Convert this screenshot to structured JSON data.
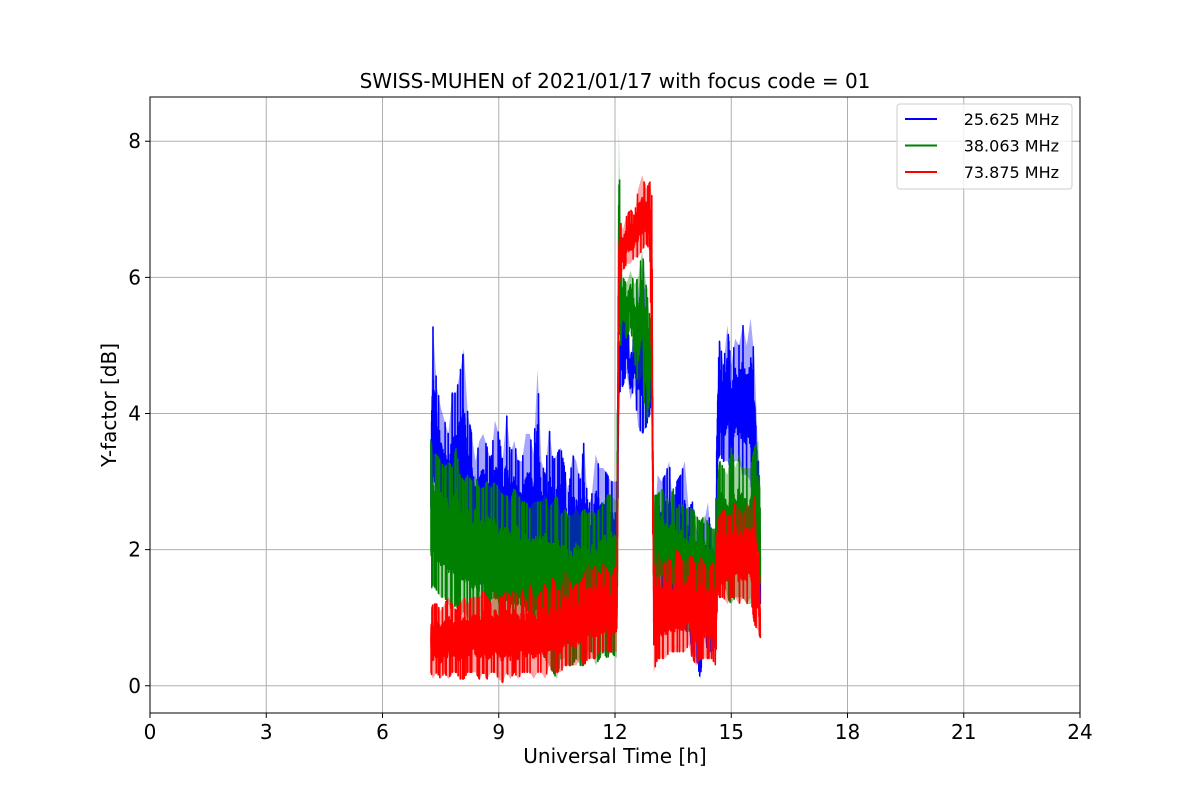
{
  "chart_data": {
    "type": "line",
    "title": "SWISS-MUHEN of 2021/01/17 with focus code = 01",
    "xlabel": "Universal Time [h]",
    "ylabel": "Y-factor [dB]",
    "xlim": [
      0,
      24
    ],
    "ylim": [
      -0.4,
      8.65
    ],
    "xticks": [
      0,
      3,
      6,
      9,
      12,
      15,
      18,
      21,
      24
    ],
    "yticks": [
      0,
      2,
      4,
      6,
      8
    ],
    "grid": true,
    "legend_position": "top-right",
    "series": [
      {
        "name": "25.625 MHz",
        "color": "#0000ff",
        "x": [
          7.25,
          7.3,
          7.4,
          7.5,
          7.6,
          7.7,
          7.8,
          7.9,
          8.0,
          8.1,
          8.2,
          8.3,
          8.4,
          8.5,
          8.6,
          8.7,
          8.8,
          8.9,
          9.0,
          9.1,
          9.2,
          9.3,
          9.4,
          9.5,
          9.6,
          9.7,
          9.8,
          9.9,
          10.0,
          10.1,
          10.2,
          10.3,
          10.4,
          10.5,
          10.6,
          10.7,
          10.8,
          10.9,
          11.0,
          11.1,
          11.2,
          11.3,
          11.4,
          11.5,
          11.6,
          11.7,
          11.8,
          11.9,
          12.05,
          12.1,
          12.15,
          12.2,
          12.3,
          12.4,
          12.5,
          12.6,
          12.7,
          12.8,
          12.9,
          12.95,
          13.0,
          13.05,
          13.1,
          13.2,
          13.3,
          13.4,
          13.5,
          13.6,
          13.7,
          13.8,
          13.9,
          14.0,
          14.1,
          14.2,
          14.3,
          14.4,
          14.5,
          14.6,
          14.65,
          14.7,
          14.8,
          14.9,
          15.0,
          15.1,
          15.2,
          15.3,
          15.4,
          15.5,
          15.6,
          15.7,
          15.75
        ],
        "upper": [
          4.0,
          5.3,
          4.4,
          4.1,
          3.9,
          3.7,
          4.3,
          4.3,
          4.6,
          4.95,
          4.0,
          3.7,
          3.3,
          3.6,
          3.7,
          3.5,
          3.3,
          3.9,
          3.7,
          3.3,
          4.0,
          3.4,
          3.6,
          3.3,
          3.3,
          3.7,
          3.7,
          3.4,
          4.65,
          3.3,
          3.1,
          3.8,
          3.3,
          3.4,
          3.5,
          3.2,
          2.8,
          3.4,
          3.3,
          3.0,
          3.6,
          2.6,
          2.8,
          3.4,
          3.2,
          3.2,
          3.1,
          3.0,
          3.0,
          5.0,
          5.4,
          5.8,
          5.5,
          4.8,
          5.2,
          5.8,
          6.2,
          5.4,
          4.7,
          4.5,
          2.5,
          2.6,
          3.1,
          3.0,
          3.1,
          3.3,
          2.6,
          3.0,
          3.1,
          3.3,
          2.6,
          2.7,
          2.3,
          2.2,
          2.4,
          2.7,
          2.0,
          2.4,
          4.5,
          5.1,
          4.7,
          5.3,
          4.7,
          5.1,
          5.0,
          5.3,
          5.0,
          5.4,
          4.8,
          3.3,
          2.6
        ],
        "lower": [
          2.2,
          2.3,
          2.4,
          2.2,
          1.9,
          1.8,
          1.7,
          1.8,
          1.7,
          1.6,
          1.6,
          1.6,
          1.7,
          1.5,
          1.5,
          1.5,
          1.5,
          1.4,
          1.4,
          1.4,
          1.4,
          1.4,
          1.4,
          1.3,
          1.3,
          1.3,
          1.3,
          1.3,
          1.3,
          1.2,
          1.2,
          1.2,
          1.2,
          1.2,
          1.2,
          1.2,
          1.2,
          1.1,
          1.1,
          1.1,
          1.1,
          1.1,
          1.1,
          1.1,
          1.1,
          1.1,
          1.0,
          1.0,
          1.0,
          4.2,
          4.4,
          4.4,
          4.6,
          4.2,
          4.4,
          3.8,
          3.7,
          3.8,
          4.0,
          4.4,
          1.3,
          1.2,
          1.1,
          1.3,
          1.2,
          1.2,
          1.3,
          1.1,
          1.0,
          0.8,
          0.8,
          0.5,
          0.4,
          0.1,
          0.7,
          0.5,
          0.5,
          0.6,
          3.3,
          3.4,
          3.3,
          3.3,
          3.2,
          3.3,
          3.3,
          3.1,
          3.1,
          3.0,
          2.6,
          1.5,
          1.2
        ]
      },
      {
        "name": "38.063 MHz",
        "color": "#008000",
        "x": [
          7.25,
          7.3,
          7.4,
          7.5,
          7.6,
          7.7,
          7.8,
          7.9,
          8.0,
          8.1,
          8.2,
          8.3,
          8.4,
          8.5,
          8.6,
          8.7,
          8.8,
          8.9,
          9.0,
          9.1,
          9.2,
          9.3,
          9.4,
          9.5,
          9.6,
          9.7,
          9.8,
          9.9,
          10.0,
          10.1,
          10.2,
          10.3,
          10.4,
          10.5,
          10.6,
          10.7,
          10.8,
          10.9,
          11.0,
          11.1,
          11.2,
          11.3,
          11.4,
          11.5,
          11.6,
          11.7,
          11.8,
          11.9,
          12.05,
          12.1,
          12.15,
          12.2,
          12.3,
          12.4,
          12.5,
          12.6,
          12.7,
          12.8,
          12.9,
          12.95,
          13.0,
          13.05,
          13.1,
          13.2,
          13.3,
          13.4,
          13.5,
          13.6,
          13.7,
          13.8,
          13.9,
          14.0,
          14.1,
          14.2,
          14.3,
          14.4,
          14.5,
          14.6,
          14.65,
          14.7,
          14.8,
          14.9,
          15.0,
          15.1,
          15.2,
          15.3,
          15.4,
          15.5,
          15.6,
          15.7,
          15.75
        ],
        "upper": [
          3.6,
          3.4,
          3.4,
          3.3,
          3.2,
          3.3,
          3.2,
          3.5,
          3.1,
          3.0,
          3.1,
          3.0,
          3.1,
          2.9,
          2.9,
          3.0,
          2.9,
          3.0,
          2.9,
          2.8,
          2.8,
          2.7,
          2.9,
          2.8,
          2.7,
          2.7,
          2.6,
          2.7,
          2.7,
          2.7,
          2.8,
          2.6,
          2.7,
          2.8,
          2.5,
          2.6,
          2.5,
          2.5,
          2.6,
          2.5,
          2.6,
          2.5,
          2.6,
          2.5,
          2.6,
          2.7,
          2.8,
          2.8,
          2.7,
          8.25,
          6.2,
          6.0,
          5.9,
          6.1,
          5.9,
          6.0,
          6.4,
          5.9,
          5.4,
          5.0,
          2.8,
          2.8,
          2.8,
          2.9,
          2.8,
          2.7,
          2.9,
          2.6,
          2.7,
          2.6,
          2.6,
          2.6,
          2.5,
          2.4,
          2.5,
          2.4,
          2.3,
          2.3,
          3.0,
          3.3,
          3.2,
          3.1,
          3.5,
          3.2,
          3.4,
          3.2,
          3.2,
          3.2,
          3.5,
          3.6,
          2.5
        ],
        "lower": [
          1.4,
          1.5,
          1.4,
          1.3,
          1.3,
          1.2,
          1.1,
          1.2,
          1.0,
          1.1,
          1.0,
          0.9,
          1.0,
          0.9,
          0.8,
          0.8,
          0.8,
          0.8,
          0.7,
          0.7,
          0.8,
          0.7,
          0.7,
          0.7,
          0.6,
          0.6,
          0.5,
          0.5,
          0.5,
          0.5,
          0.4,
          0.3,
          0.2,
          0.1,
          0.4,
          0.4,
          0.3,
          0.3,
          0.4,
          0.3,
          0.3,
          0.5,
          0.5,
          0.3,
          0.4,
          0.5,
          0.4,
          0.5,
          0.4,
          5.3,
          5.0,
          5.2,
          5.1,
          5.3,
          4.8,
          4.4,
          4.6,
          3.8,
          4.2,
          4.4,
          1.3,
          1.1,
          1.0,
          1.2,
          1.1,
          1.0,
          1.0,
          0.9,
          0.9,
          0.8,
          0.8,
          0.8,
          0.9,
          0.8,
          0.9,
          0.7,
          0.9,
          0.9,
          1.7,
          1.5,
          1.5,
          1.3,
          1.2,
          1.3,
          1.3,
          1.3,
          1.2,
          1.2,
          1.3,
          1.5,
          1.5
        ]
      },
      {
        "name": "73.875 MHz",
        "color": "#ff0000",
        "x": [
          7.25,
          7.3,
          7.4,
          7.5,
          7.6,
          7.7,
          7.8,
          7.9,
          8.0,
          8.1,
          8.2,
          8.3,
          8.4,
          8.5,
          8.6,
          8.7,
          8.8,
          8.9,
          9.0,
          9.1,
          9.2,
          9.3,
          9.4,
          9.5,
          9.6,
          9.7,
          9.8,
          9.9,
          10.0,
          10.1,
          10.2,
          10.3,
          10.4,
          10.5,
          10.6,
          10.7,
          10.8,
          10.9,
          11.0,
          11.1,
          11.2,
          11.3,
          11.4,
          11.5,
          11.6,
          11.7,
          11.8,
          11.9,
          12.05,
          12.1,
          12.15,
          12.2,
          12.3,
          12.4,
          12.5,
          12.6,
          12.7,
          12.8,
          12.9,
          12.95,
          13.0,
          13.05,
          13.1,
          13.2,
          13.3,
          13.4,
          13.5,
          13.6,
          13.7,
          13.8,
          13.9,
          14.0,
          14.1,
          14.2,
          14.3,
          14.4,
          14.5,
          14.6,
          14.65,
          14.7,
          14.8,
          14.9,
          15.0,
          15.1,
          15.2,
          15.3,
          15.4,
          15.5,
          15.6,
          15.7,
          15.75
        ],
        "upper": [
          1.1,
          1.2,
          1.2,
          1.1,
          1.2,
          1.3,
          1.2,
          1.1,
          1.2,
          1.3,
          1.2,
          1.3,
          1.3,
          1.3,
          1.4,
          1.3,
          1.2,
          1.4,
          1.3,
          1.3,
          1.4,
          1.3,
          1.4,
          1.3,
          1.4,
          1.2,
          1.5,
          1.3,
          1.3,
          1.4,
          1.5,
          1.3,
          1.6,
          1.4,
          1.4,
          1.7,
          1.6,
          1.4,
          1.5,
          1.5,
          1.6,
          1.8,
          1.7,
          1.8,
          1.6,
          1.8,
          1.7,
          1.6,
          1.8,
          6.7,
          6.8,
          6.7,
          6.9,
          7.0,
          6.9,
          7.3,
          7.5,
          7.3,
          7.4,
          7.2,
          1.8,
          1.7,
          2.0,
          1.8,
          1.8,
          1.9,
          1.7,
          2.0,
          1.9,
          1.8,
          1.9,
          1.9,
          1.7,
          1.9,
          1.8,
          1.7,
          1.8,
          1.8,
          2.4,
          2.5,
          2.6,
          2.5,
          2.5,
          2.7,
          2.6,
          2.5,
          2.7,
          2.6,
          2.8,
          2.1,
          1.3
        ],
        "lower": [
          0.2,
          0.1,
          0.2,
          0.1,
          0.2,
          0.1,
          0.2,
          0.2,
          0.1,
          0.1,
          0.2,
          0.2,
          0.2,
          0.1,
          0.2,
          0.1,
          0.2,
          0.2,
          0.1,
          0.05,
          0.2,
          0.1,
          0.2,
          0.1,
          0.2,
          0.2,
          0.2,
          0.1,
          0.2,
          0.2,
          0.1,
          0.3,
          0.2,
          0.2,
          0.2,
          0.3,
          0.3,
          0.3,
          0.3,
          0.4,
          0.3,
          0.4,
          0.4,
          0.4,
          0.5,
          0.5,
          0.5,
          0.5,
          0.5,
          5.9,
          6.0,
          6.1,
          6.2,
          6.2,
          6.3,
          6.3,
          6.4,
          6.5,
          6.4,
          4.4,
          0.2,
          0.3,
          0.4,
          0.4,
          0.4,
          0.5,
          0.5,
          0.5,
          0.5,
          0.5,
          0.6,
          0.4,
          0.3,
          0.4,
          0.4,
          0.4,
          0.4,
          0.3,
          1.4,
          1.3,
          1.3,
          1.2,
          1.3,
          1.3,
          1.2,
          1.3,
          1.2,
          1.3,
          0.9,
          0.8,
          0.7
        ]
      }
    ]
  }
}
